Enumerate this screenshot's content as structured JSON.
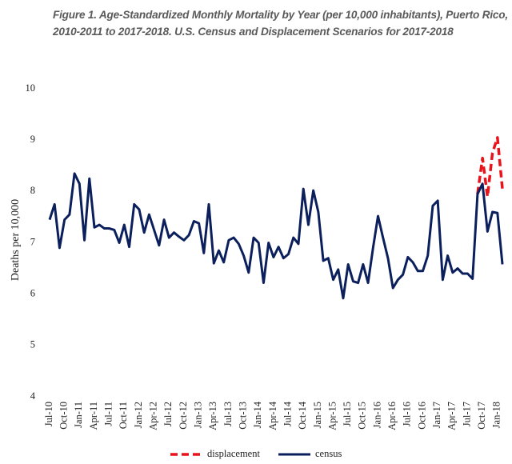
{
  "chart_data": {
    "type": "line",
    "title": "Figure 1. Age-Standardized Monthly Mortality by Year (per 10,000 inhabitants), Puerto Rico, 2010-2011 to 2017-2018. U.S. Census and Displacement Scenarios for 2017-2018",
    "y_label": "Deaths per 10,000",
    "categories": [
      "Jul-10",
      null,
      null,
      "Oct-10",
      null,
      null,
      "Jan-11",
      null,
      null,
      "Apr-11",
      null,
      null,
      "Jul-11",
      null,
      null,
      "Oct-11",
      null,
      null,
      "Jan-12",
      null,
      null,
      "Apr-12",
      null,
      null,
      "Jul-12",
      null,
      null,
      "Oct-12",
      null,
      null,
      "Jan-13",
      null,
      null,
      "Apr-13",
      null,
      null,
      "Jul-13",
      null,
      null,
      "Oct-13",
      null,
      null,
      "Jan-14",
      null,
      null,
      "Apr-14",
      null,
      null,
      "Jul-14",
      null,
      null,
      "Oct-14",
      null,
      null,
      "Jan-15",
      null,
      null,
      "Apr-15",
      null,
      null,
      "Jul-15",
      null,
      null,
      "Oct-15",
      null,
      null,
      "Jan-16",
      null,
      null,
      "Apr-16",
      null,
      null,
      "Jul-16",
      null,
      null,
      "Oct-16",
      null,
      null,
      "Jan-17",
      null,
      null,
      "Apr-17",
      null,
      null,
      "Jul-17",
      null,
      null,
      "Oct-17",
      null,
      null,
      "Jan-18",
      null
    ],
    "series": [
      {
        "name": "displacement",
        "color": "#e8141b",
        "dashed": true,
        "values": [
          null,
          null,
          null,
          null,
          null,
          null,
          null,
          null,
          null,
          null,
          null,
          null,
          null,
          null,
          null,
          null,
          null,
          null,
          null,
          null,
          null,
          null,
          null,
          null,
          null,
          null,
          null,
          null,
          null,
          null,
          null,
          null,
          null,
          null,
          null,
          null,
          null,
          null,
          null,
          null,
          null,
          null,
          null,
          null,
          null,
          null,
          null,
          null,
          null,
          null,
          null,
          null,
          null,
          null,
          null,
          null,
          null,
          null,
          null,
          null,
          null,
          null,
          null,
          null,
          null,
          null,
          null,
          null,
          null,
          null,
          null,
          null,
          null,
          null,
          null,
          null,
          null,
          null,
          null,
          null,
          null,
          null,
          null,
          null,
          null,
          null,
          7.95,
          8.65,
          7.9,
          8.75,
          9.05,
          8.05
        ]
      },
      {
        "name": "census",
        "color": "#0b1f5c",
        "dashed": false,
        "values": [
          7.45,
          7.75,
          6.9,
          7.45,
          7.55,
          8.35,
          8.15,
          7.05,
          8.25,
          7.3,
          7.35,
          7.28,
          7.28,
          7.25,
          7.0,
          7.35,
          6.92,
          7.75,
          7.65,
          7.2,
          7.55,
          7.25,
          6.95,
          7.45,
          7.1,
          7.2,
          7.12,
          7.05,
          7.15,
          7.42,
          7.38,
          6.8,
          7.75,
          6.6,
          6.85,
          6.62,
          7.05,
          7.1,
          6.98,
          6.75,
          6.42,
          7.1,
          7.0,
          6.22,
          7.0,
          6.72,
          6.92,
          6.7,
          6.78,
          7.1,
          6.98,
          8.05,
          7.35,
          8.02,
          7.6,
          6.65,
          6.7,
          6.28,
          6.48,
          5.92,
          6.58,
          6.25,
          6.22,
          6.58,
          6.22,
          6.9,
          7.52,
          7.1,
          6.7,
          6.12,
          6.28,
          6.38,
          6.72,
          6.62,
          6.45,
          6.45,
          6.75,
          7.72,
          7.82,
          6.28,
          6.75,
          6.42,
          6.5,
          6.4,
          6.4,
          6.3,
          7.95,
          8.15,
          7.22,
          7.6,
          7.58,
          6.58
        ]
      }
    ],
    "ylim": [
      4,
      10
    ],
    "yticks": [
      4,
      5,
      6,
      7,
      8,
      9,
      10
    ],
    "grid": false,
    "legend": "bottom"
  }
}
